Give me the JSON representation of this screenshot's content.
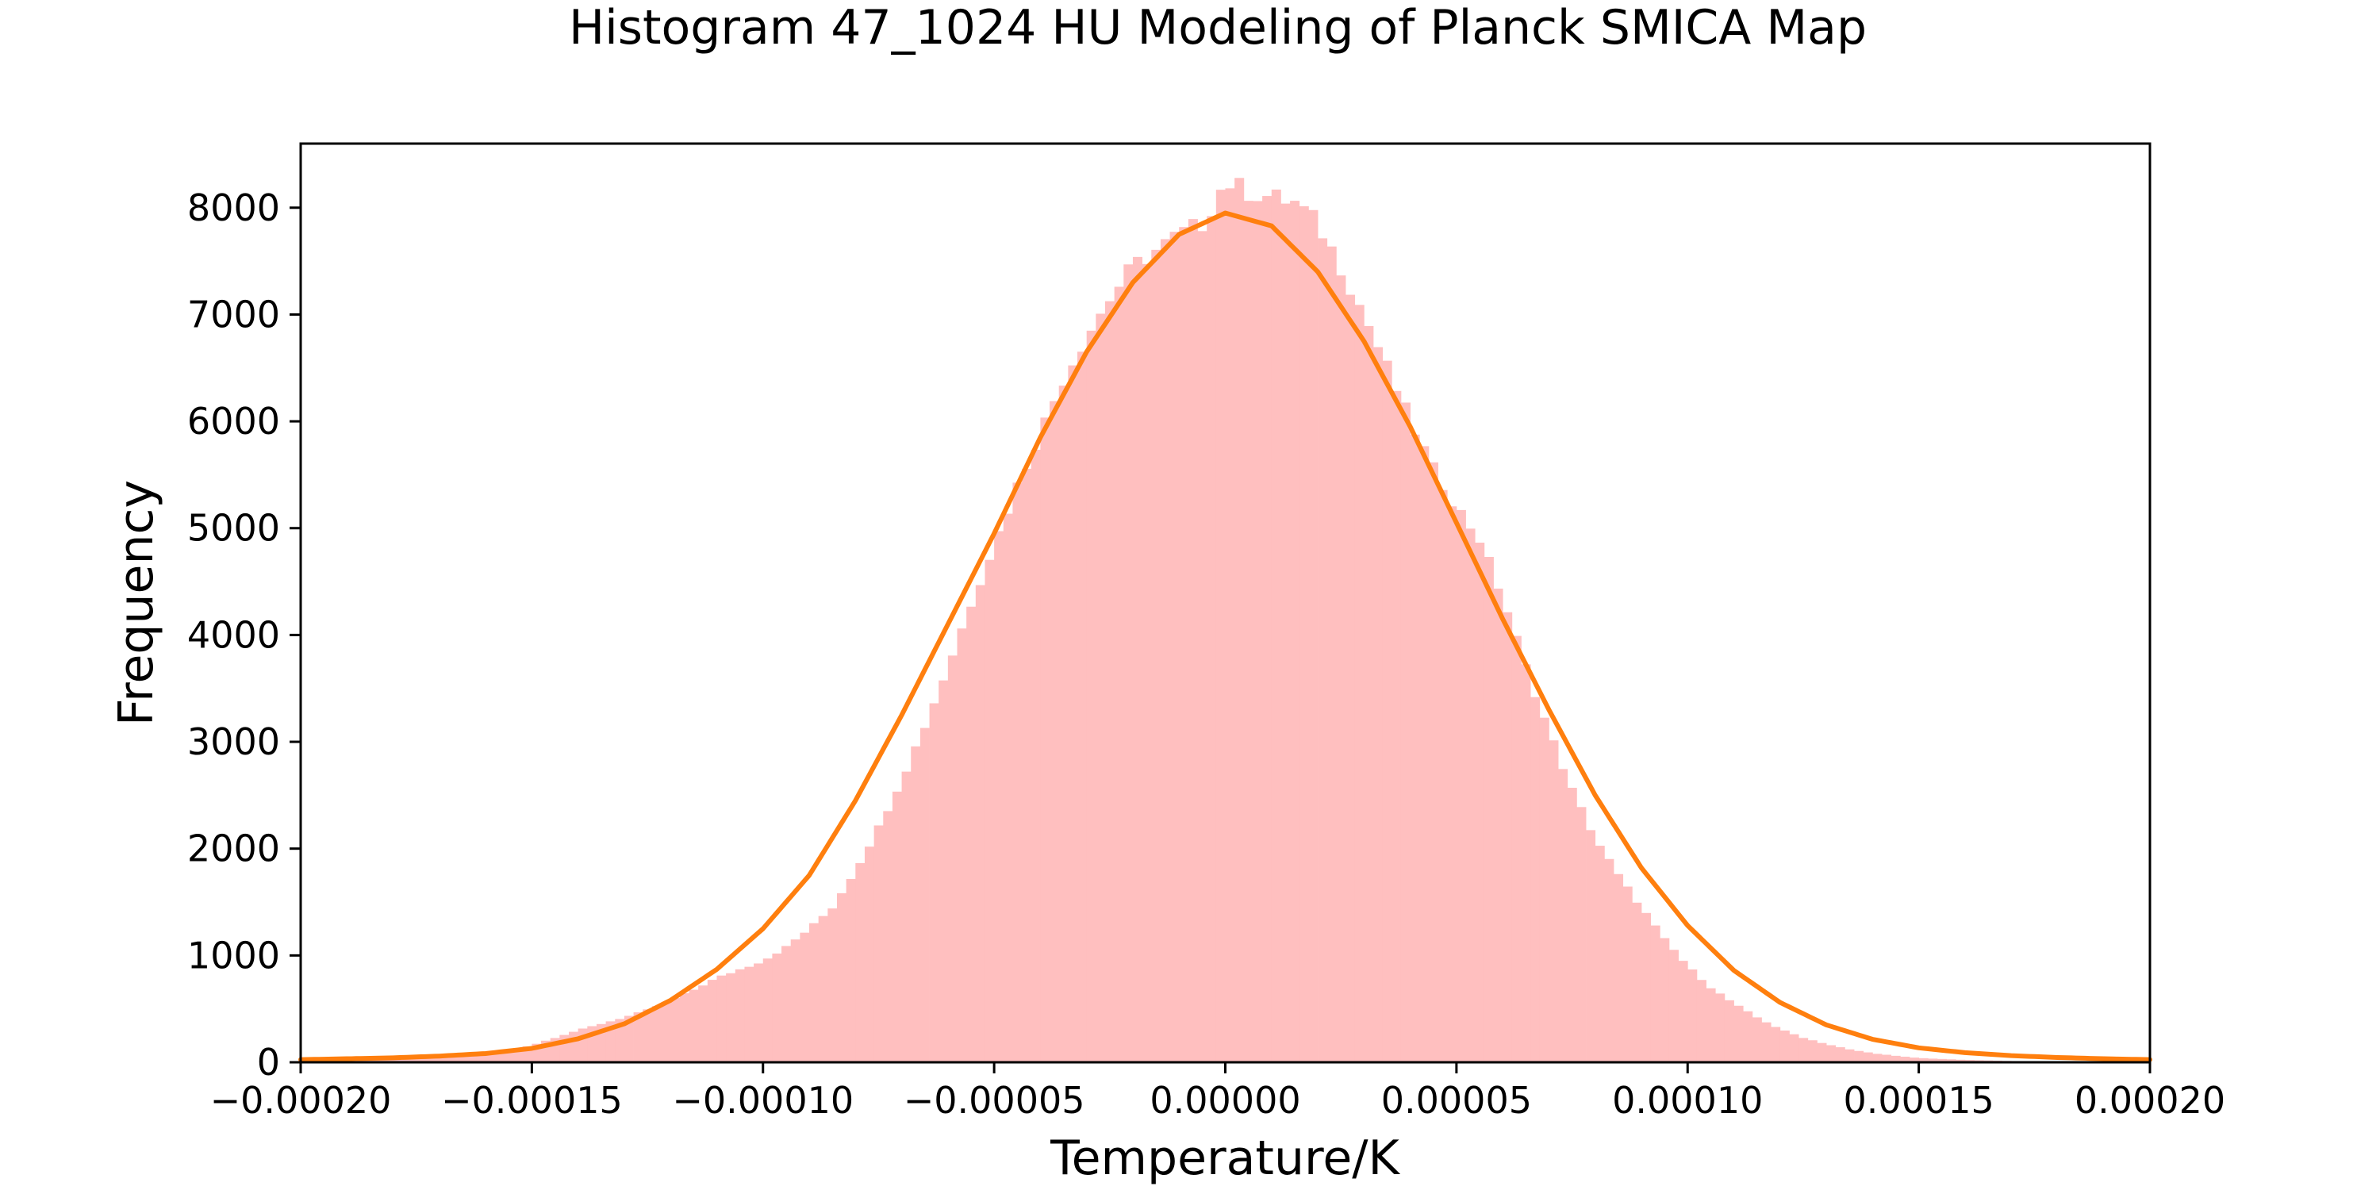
{
  "chart_data": {
    "type": "bar",
    "title": "Histogram 47_1024 HU Modeling of Planck SMICA Map",
    "xlabel": "Temperature/K",
    "ylabel": "Frequency",
    "xlim": [
      -0.0002,
      0.0002
    ],
    "ylim": [
      0,
      8600
    ],
    "xticks": [
      -0.0002,
      -0.00015,
      -0.0001,
      -5e-05,
      0.0,
      5e-05,
      0.0001,
      0.00015,
      0.0002
    ],
    "xtick_labels": [
      "−0.00020",
      "−0.00015",
      "−0.00010",
      "−0.00005",
      "0.00000",
      "0.00005",
      "0.00010",
      "0.00015",
      "0.00020"
    ],
    "yticks": [
      0,
      1000,
      2000,
      3000,
      4000,
      5000,
      6000,
      7000,
      8000
    ],
    "ytick_labels": [
      "0",
      "1000",
      "2000",
      "3000",
      "4000",
      "5000",
      "6000",
      "7000",
      "8000"
    ],
    "grid": false,
    "legend": false,
    "series": [
      {
        "kind": "histogram",
        "color": "#ffbfbf",
        "bin_width": 2e-06,
        "x_start": -0.0002,
        "x_end": 0.0002,
        "envelope": [
          [
            -0.0002,
            10
          ],
          [
            -0.00019,
            15
          ],
          [
            -0.00018,
            22
          ],
          [
            -0.00017,
            40
          ],
          [
            -0.00016,
            80
          ],
          [
            -0.000155,
            110
          ],
          [
            -0.00015,
            160
          ],
          [
            -0.000145,
            230
          ],
          [
            -0.00014,
            300
          ],
          [
            -0.000135,
            360
          ],
          [
            -0.00013,
            420
          ],
          [
            -0.000125,
            490
          ],
          [
            -0.00012,
            580
          ],
          [
            -0.000115,
            680
          ],
          [
            -0.00011,
            790
          ],
          [
            -0.000105,
            870
          ],
          [
            -0.0001,
            950
          ],
          [
            -9.5e-05,
            1080
          ],
          [
            -9e-05,
            1250
          ],
          [
            -8.5e-05,
            1450
          ],
          [
            -8e-05,
            1800
          ],
          [
            -7.5e-05,
            2200
          ],
          [
            -7e-05,
            2650
          ],
          [
            -6.5e-05,
            3150
          ],
          [
            -6e-05,
            3700
          ],
          [
            -5.5e-05,
            4300
          ],
          [
            -5e-05,
            4850
          ],
          [
            -4.5e-05,
            5400
          ],
          [
            -4e-05,
            5900
          ],
          [
            -3.5e-05,
            6400
          ],
          [
            -3e-05,
            6800
          ],
          [
            -2.5e-05,
            7150
          ],
          [
            -2e-05,
            7450
          ],
          [
            -1.5e-05,
            7600
          ],
          [
            -1e-05,
            7750
          ],
          [
            -5e-06,
            7850
          ],
          [
            0.0,
            8250
          ],
          [
            5e-06,
            8150
          ],
          [
            1e-05,
            8100
          ],
          [
            1.5e-05,
            8050
          ],
          [
            2e-05,
            7850
          ],
          [
            2.5e-05,
            7450
          ],
          [
            3e-05,
            7000
          ],
          [
            3.5e-05,
            6500
          ],
          [
            4e-05,
            6000
          ],
          [
            4.5e-05,
            5550
          ],
          [
            5e-05,
            5200
          ],
          [
            5.5e-05,
            4900
          ],
          [
            6e-05,
            4350
          ],
          [
            6.5e-05,
            3700
          ],
          [
            7e-05,
            3100
          ],
          [
            7.5e-05,
            2550
          ],
          [
            8e-05,
            2100
          ],
          [
            8.5e-05,
            1750
          ],
          [
            9e-05,
            1450
          ],
          [
            9.5e-05,
            1150
          ],
          [
            0.0001,
            900
          ],
          [
            0.000105,
            700
          ],
          [
            0.00011,
            550
          ],
          [
            0.000115,
            420
          ],
          [
            0.00012,
            310
          ],
          [
            0.000125,
            230
          ],
          [
            0.00013,
            170
          ],
          [
            0.000135,
            120
          ],
          [
            0.00014,
            85
          ],
          [
            0.000145,
            60
          ],
          [
            0.00015,
            40
          ],
          [
            0.00016,
            22
          ],
          [
            0.00017,
            12
          ],
          [
            0.00018,
            8
          ],
          [
            0.00019,
            5
          ],
          [
            0.0002,
            3
          ]
        ]
      },
      {
        "kind": "line",
        "color": "#ff7f0e",
        "line_width": 6,
        "curve": [
          [
            -0.0002,
            25
          ],
          [
            -0.00019,
            33
          ],
          [
            -0.00018,
            42
          ],
          [
            -0.00017,
            58
          ],
          [
            -0.00016,
            82
          ],
          [
            -0.00015,
            130
          ],
          [
            -0.00014,
            220
          ],
          [
            -0.00013,
            360
          ],
          [
            -0.00012,
            580
          ],
          [
            -0.00011,
            870
          ],
          [
            -0.0001,
            1250
          ],
          [
            -9e-05,
            1750
          ],
          [
            -8e-05,
            2450
          ],
          [
            -7e-05,
            3250
          ],
          [
            -6e-05,
            4100
          ],
          [
            -5e-05,
            4950
          ],
          [
            -4e-05,
            5850
          ],
          [
            -3e-05,
            6650
          ],
          [
            -2e-05,
            7300
          ],
          [
            -1e-05,
            7750
          ],
          [
            0.0,
            7950
          ],
          [
            1e-05,
            7830
          ],
          [
            2e-05,
            7400
          ],
          [
            3e-05,
            6750
          ],
          [
            4e-05,
            5950
          ],
          [
            5e-05,
            5050
          ],
          [
            6e-05,
            4150
          ],
          [
            7e-05,
            3300
          ],
          [
            8e-05,
            2500
          ],
          [
            9e-05,
            1820
          ],
          [
            0.0001,
            1280
          ],
          [
            0.00011,
            860
          ],
          [
            0.00012,
            560
          ],
          [
            0.00013,
            350
          ],
          [
            0.00014,
            215
          ],
          [
            0.00015,
            135
          ],
          [
            0.00016,
            90
          ],
          [
            0.00017,
            62
          ],
          [
            0.00018,
            45
          ],
          [
            0.00019,
            33
          ],
          [
            0.0002,
            25
          ]
        ]
      }
    ]
  }
}
